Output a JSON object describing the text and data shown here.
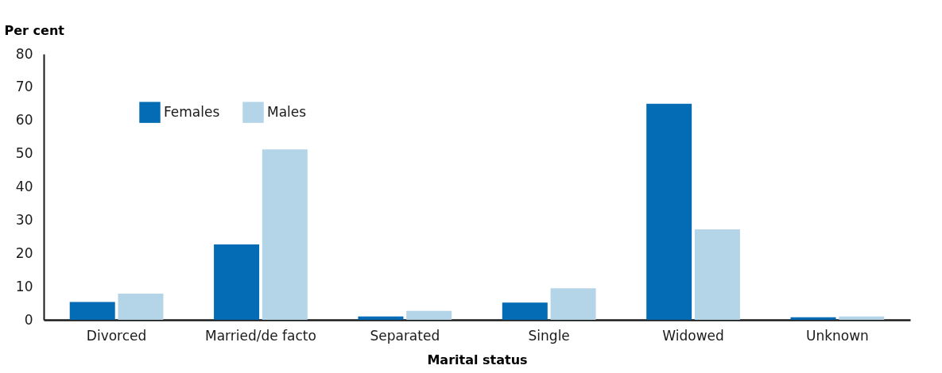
{
  "chart_data": {
    "type": "bar",
    "xlabel": "Marital status",
    "ylabel": "Per cent",
    "categories": [
      "Divorced",
      "Married/de facto",
      "Separated",
      "Single",
      "Widowed",
      "Unknown"
    ],
    "series": [
      {
        "name": "Females",
        "color": "#046cb4",
        "values": [
          5.4,
          22.7,
          1.0,
          5.2,
          65.0,
          0.8
        ]
      },
      {
        "name": "Males",
        "color": "#b4d4e8",
        "values": [
          7.9,
          51.3,
          2.7,
          9.5,
          27.2,
          1.0
        ]
      }
    ],
    "ylim": [
      0,
      80
    ],
    "yticks": [
      0,
      10,
      20,
      30,
      40,
      50,
      60,
      70,
      80
    ],
    "grid": false,
    "legend": "top left"
  }
}
